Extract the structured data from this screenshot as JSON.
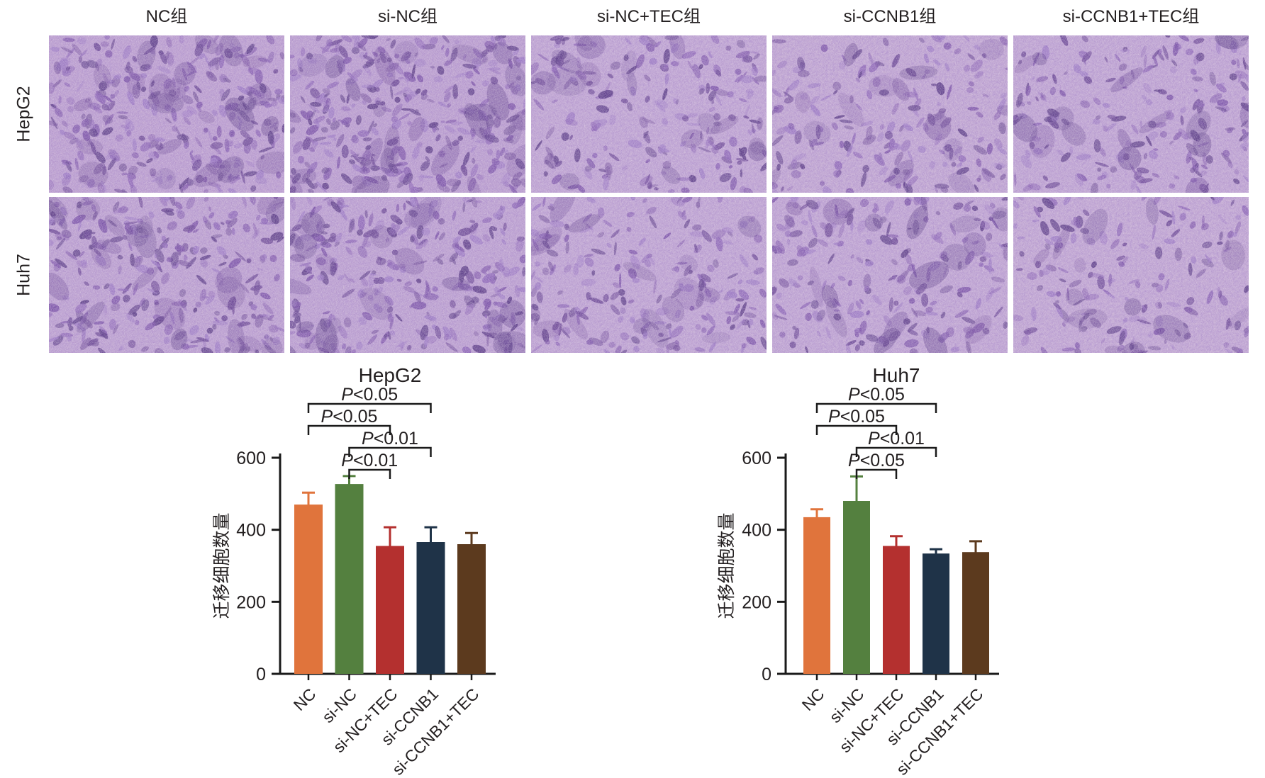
{
  "figure": {
    "column_headers": [
      "NC组",
      "si-NC组",
      "si-NC+TEC组",
      "si-CCNB1组",
      "si-CCNB1+TEC组"
    ],
    "row_labels": [
      "HepG2",
      "Huh7"
    ]
  },
  "microscopy": {
    "stain": "crystal-violet",
    "background": "#cdb5d8",
    "cell_palette": [
      "#5a3a86",
      "#6b4795",
      "#7a51a7",
      "#8b64b5",
      "#9a77c2"
    ],
    "rows": [
      {
        "label": "HepG2",
        "panels": [
          {
            "group": "NC",
            "density": 0.9
          },
          {
            "group": "si-NC",
            "density": 1.0
          },
          {
            "group": "si-NC+TEC",
            "density": 0.6
          },
          {
            "group": "si-CCNB1",
            "density": 0.55
          },
          {
            "group": "si-CCNB1+TEC",
            "density": 0.6
          }
        ]
      },
      {
        "label": "Huh7",
        "panels": [
          {
            "group": "NC",
            "density": 0.8
          },
          {
            "group": "si-NC",
            "density": 0.85
          },
          {
            "group": "si-NC+TEC",
            "density": 0.6
          },
          {
            "group": "si-CCNB1",
            "density": 0.6
          },
          {
            "group": "si-CCNB1+TEC",
            "density": 0.5
          }
        ]
      }
    ]
  },
  "chart_data": [
    {
      "type": "bar",
      "title": "HepG2",
      "ylabel": "迁移细胞数量",
      "ylim": [
        0,
        600
      ],
      "yticks": [
        0,
        200,
        400,
        600
      ],
      "categories": [
        "NC",
        "si-NC",
        "si-NC+TEC",
        "si-CCNB1",
        "si-CCNB1+TEC"
      ],
      "values": [
        470,
        527,
        355,
        366,
        360
      ],
      "errors": [
        33,
        22,
        52,
        41,
        31
      ],
      "bar_colors": [
        "#e0743c",
        "#54803f",
        "#b4302f",
        "#1f3348",
        "#5c3a1e"
      ],
      "grid": false,
      "significance": [
        {
          "between": [
            "si-NC",
            "si-NC+TEC"
          ],
          "label": "P<0.01"
        },
        {
          "between": [
            "si-NC",
            "si-CCNB1"
          ],
          "label": "P<0.01"
        },
        {
          "between": [
            "NC",
            "si-NC+TEC"
          ],
          "label": "P<0.05"
        },
        {
          "between": [
            "NC",
            "si-CCNB1"
          ],
          "label": "P<0.05"
        }
      ]
    },
    {
      "type": "bar",
      "title": "Huh7",
      "ylabel": "迁移细胞数量",
      "ylim": [
        0,
        600
      ],
      "yticks": [
        0,
        200,
        400,
        600
      ],
      "categories": [
        "NC",
        "si-NC",
        "si-NC+TEC",
        "si-CCNB1",
        "si-CCNB1+TEC"
      ],
      "values": [
        435,
        480,
        355,
        334,
        338
      ],
      "errors": [
        22,
        68,
        27,
        12,
        30
      ],
      "bar_colors": [
        "#e0743c",
        "#54803f",
        "#b4302f",
        "#1f3348",
        "#5c3a1e"
      ],
      "grid": false,
      "significance": [
        {
          "between": [
            "si-NC",
            "si-NC+TEC"
          ],
          "label": "P<0.05"
        },
        {
          "between": [
            "si-NC",
            "si-CCNB1"
          ],
          "label": "P<0.01"
        },
        {
          "between": [
            "NC",
            "si-NC+TEC"
          ],
          "label": "P<0.05"
        },
        {
          "between": [
            "NC",
            "si-CCNB1"
          ],
          "label": "P<0.05"
        }
      ]
    }
  ]
}
